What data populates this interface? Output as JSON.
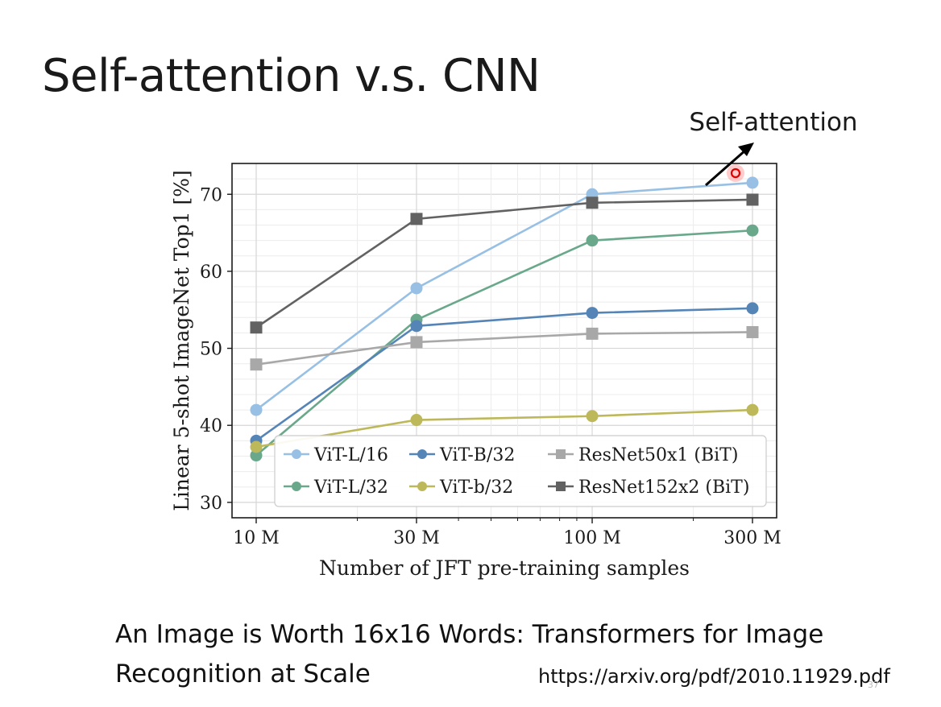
{
  "slide": {
    "title": "Self-attention v.s. CNN",
    "callout": "Self-attention",
    "citation_line1": "An Image is Worth 16x16 Words: Transformers for Image",
    "citation_line2": "Recognition at Scale",
    "url": "https://arxiv.org/pdf/2010.11929.pdf",
    "page_number": "37"
  },
  "chart_data": {
    "type": "line",
    "xlabel": "Number of JFT pre-training samples",
    "ylabel": "Linear 5-shot ImageNet Top1 [%]",
    "x_scale": "log",
    "x": [
      10,
      30,
      100,
      300
    ],
    "x_tick_labels": [
      "10 M",
      "30 M",
      "100 M",
      "300 M"
    ],
    "y_ticks": [
      30,
      40,
      50,
      60,
      70
    ],
    "ylim": [
      28,
      74
    ],
    "grid": true,
    "legend_position": "lower-right",
    "series": [
      {
        "name": "ViT-L/16",
        "marker": "circle",
        "color": "#98c0e4",
        "values": [
          42,
          57.8,
          70,
          71.5
        ]
      },
      {
        "name": "ViT-L/32",
        "marker": "circle",
        "color": "#6aa88c",
        "values": [
          36.1,
          53.7,
          64,
          65.3
        ]
      },
      {
        "name": "ViT-B/32",
        "marker": "circle",
        "color": "#5584b7",
        "values": [
          38,
          52.9,
          54.6,
          55.2
        ]
      },
      {
        "name": "ViT-b/32",
        "marker": "circle",
        "color": "#bdb85a",
        "values": [
          37.2,
          40.7,
          41.2,
          42
        ]
      },
      {
        "name": "ResNet50x1 (BiT)",
        "marker": "square",
        "color": "#a8a8a8",
        "values": [
          47.9,
          50.8,
          51.9,
          52.1
        ]
      },
      {
        "name": "ResNet152x2 (BiT)",
        "marker": "square",
        "color": "#626262",
        "values": [
          52.7,
          66.8,
          68.9,
          69.3
        ]
      }
    ]
  }
}
